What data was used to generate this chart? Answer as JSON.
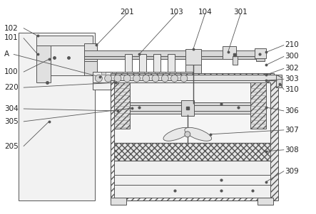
{
  "bg_color": "#ffffff",
  "lc": "#555555",
  "lc_thin": "#666666",
  "figsize": [
    4.43,
    3.01
  ],
  "dpi": 100,
  "label_fs": 7.5
}
